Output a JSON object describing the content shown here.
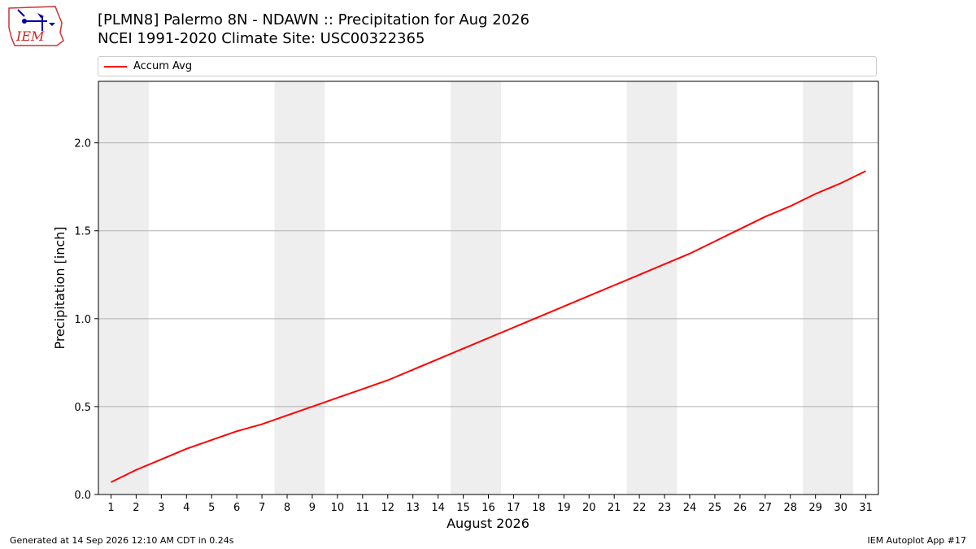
{
  "header": {
    "logo_text": "IEM",
    "title_line1": "[PLMN8] Palermo 8N - NDAWN :: Precipitation for Aug 2026",
    "title_line2": "NCEI 1991-2020 Climate Site: USC00322365"
  },
  "footer": {
    "generated": "Generated at 14 Sep 2026 12:10 AM CDT in 0.24s",
    "app": "IEM Autoplot App #17"
  },
  "chart_data": {
    "type": "line",
    "xlabel": "August 2026",
    "ylabel": "Precipitation [inch]",
    "xlim": [
      0.5,
      31.5
    ],
    "ylim": [
      0,
      2.35
    ],
    "yticks": [
      0.0,
      0.5,
      1.0,
      1.5,
      2.0
    ],
    "ytick_labels": [
      "0.0",
      "0.5",
      "1.0",
      "1.5",
      "2.0"
    ],
    "x": [
      1,
      2,
      3,
      4,
      5,
      6,
      7,
      8,
      9,
      10,
      11,
      12,
      13,
      14,
      15,
      16,
      17,
      18,
      19,
      20,
      21,
      22,
      23,
      24,
      25,
      26,
      27,
      28,
      29,
      30,
      31
    ],
    "xtick_labels": [
      "1",
      "2",
      "3",
      "4",
      "5",
      "6",
      "7",
      "8",
      "9",
      "10",
      "11",
      "12",
      "13",
      "14",
      "15",
      "16",
      "17",
      "18",
      "19",
      "20",
      "21",
      "22",
      "23",
      "24",
      "25",
      "26",
      "27",
      "28",
      "29",
      "30",
      "31"
    ],
    "grid": "horizontal",
    "legend": "top",
    "weekend_shading": [
      [
        0.5,
        2.5
      ],
      [
        7.5,
        9.5
      ],
      [
        14.5,
        16.5
      ],
      [
        21.5,
        23.5
      ],
      [
        28.5,
        30.5
      ]
    ],
    "shading_color": "#eeeeee",
    "series": [
      {
        "name": "Accum Avg",
        "color": "#ff0000",
        "values": [
          0.07,
          0.14,
          0.2,
          0.26,
          0.31,
          0.36,
          0.4,
          0.45,
          0.5,
          0.55,
          0.6,
          0.65,
          0.71,
          0.77,
          0.83,
          0.89,
          0.95,
          1.01,
          1.07,
          1.13,
          1.19,
          1.25,
          1.31,
          1.37,
          1.44,
          1.51,
          1.58,
          1.64,
          1.71,
          1.77,
          1.84
        ]
      }
    ]
  }
}
